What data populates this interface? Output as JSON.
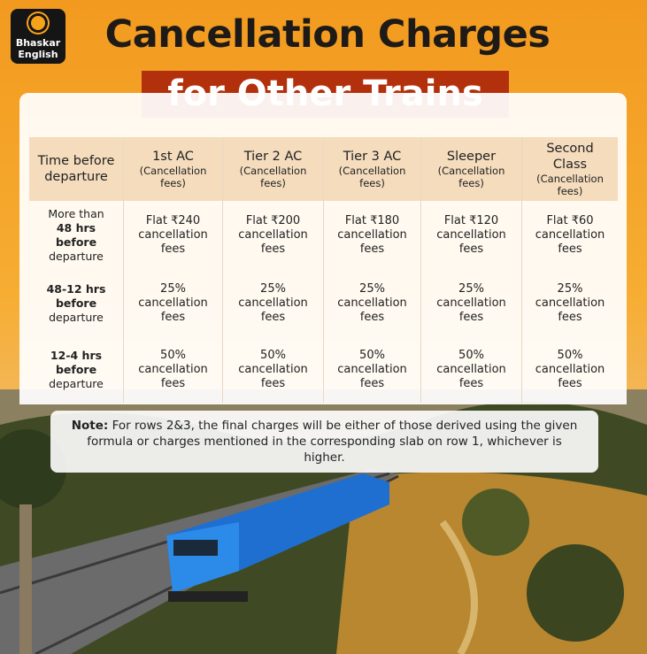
{
  "logo": {
    "line1": "Bhaskar",
    "line2": "English"
  },
  "header": {
    "title": "Cancellation Charges",
    "subtitle": "for Other Trains"
  },
  "table": {
    "columns": [
      {
        "name": "Time before departure",
        "sub": null
      },
      {
        "name": "1st AC",
        "sub": "(Cancellation fees)"
      },
      {
        "name": "Tier 2 AC",
        "sub": "(Cancellation fees)"
      },
      {
        "name": "Tier 3 AC",
        "sub": "(Cancellation fees)"
      },
      {
        "name": "Sleeper",
        "sub": "(Cancellation fees)"
      },
      {
        "name": "Second Class",
        "sub": "(Cancellation fees)"
      }
    ],
    "rows": [
      {
        "label": [
          {
            "text": "More than",
            "bold": false
          },
          {
            "text": "48 hrs before",
            "bold": true
          },
          {
            "text": "departure",
            "bold": false
          }
        ],
        "cells": [
          "Flat ₹240 cancellation fees",
          "Flat ₹200 cancellation fees",
          "Flat ₹180 cancellation fees",
          "Flat ₹120 cancellation fees",
          "Flat ₹60 cancellation fees"
        ]
      },
      {
        "label": [
          {
            "text": "48-12 hrs",
            "bold": true
          },
          {
            "text": "before",
            "bold": true
          },
          {
            "text": "departure",
            "bold": false
          }
        ],
        "cells": [
          "25% cancellation fees",
          "25% cancellation fees",
          "25% cancellation fees",
          "25% cancellation fees",
          "25% cancellation fees"
        ]
      },
      {
        "label": [
          {
            "text": "12-4 hrs",
            "bold": true
          },
          {
            "text": "before",
            "bold": true
          },
          {
            "text": "departure",
            "bold": false
          }
        ],
        "cells": [
          "50% cancellation fees",
          "50% cancellation fees",
          "50% cancellation fees",
          "50% cancellation fees",
          "50% cancellation fees"
        ]
      }
    ]
  },
  "note": {
    "label": "Note:",
    "text": "For rows 2&3, the final charges will be either of those derived using the given formula or charges mentioned in the corresponding slab on row 1, whichever is higher."
  }
}
